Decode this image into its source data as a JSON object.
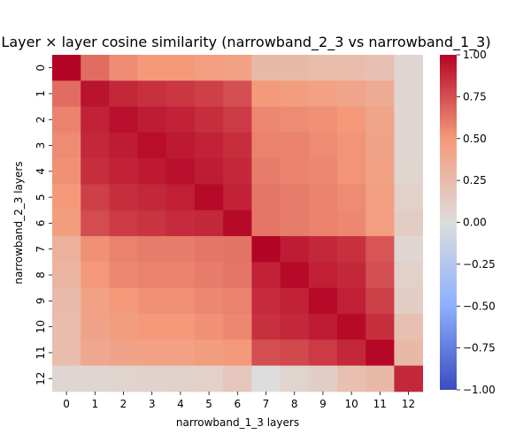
{
  "chart_data": {
    "type": "heatmap",
    "title": "Layer × layer cosine similarity (narrowband_2_3 vs narrowband_1_3)",
    "xlabel": "narrowband_1_3 layers",
    "ylabel": "narrowband_2_3 layers",
    "x_categories": [
      "0",
      "1",
      "2",
      "3",
      "4",
      "5",
      "6",
      "7",
      "8",
      "9",
      "10",
      "11",
      "12"
    ],
    "y_categories": [
      "0",
      "1",
      "2",
      "3",
      "4",
      "5",
      "6",
      "7",
      "8",
      "9",
      "10",
      "11",
      "12"
    ],
    "values": [
      [
        1.0,
        0.65,
        0.55,
        0.5,
        0.5,
        0.47,
        0.45,
        0.27,
        0.27,
        0.25,
        0.25,
        0.22,
        0.05
      ],
      [
        0.65,
        0.95,
        0.88,
        0.85,
        0.83,
        0.8,
        0.75,
        0.5,
        0.48,
        0.45,
        0.42,
        0.37,
        0.05
      ],
      [
        0.58,
        0.9,
        0.96,
        0.92,
        0.9,
        0.86,
        0.82,
        0.56,
        0.55,
        0.53,
        0.5,
        0.42,
        0.06
      ],
      [
        0.55,
        0.88,
        0.92,
        0.97,
        0.93,
        0.9,
        0.86,
        0.58,
        0.58,
        0.55,
        0.52,
        0.44,
        0.06
      ],
      [
        0.53,
        0.86,
        0.9,
        0.93,
        0.96,
        0.92,
        0.88,
        0.6,
        0.58,
        0.56,
        0.52,
        0.45,
        0.07
      ],
      [
        0.5,
        0.8,
        0.86,
        0.88,
        0.91,
        0.98,
        0.9,
        0.62,
        0.6,
        0.58,
        0.55,
        0.47,
        0.1
      ],
      [
        0.48,
        0.76,
        0.82,
        0.84,
        0.87,
        0.88,
        0.98,
        0.62,
        0.6,
        0.58,
        0.56,
        0.47,
        0.13
      ],
      [
        0.33,
        0.53,
        0.58,
        0.6,
        0.6,
        0.62,
        0.63,
        1.0,
        0.92,
        0.88,
        0.85,
        0.73,
        0.05
      ],
      [
        0.3,
        0.5,
        0.56,
        0.58,
        0.58,
        0.6,
        0.62,
        0.9,
        0.98,
        0.91,
        0.88,
        0.75,
        0.1
      ],
      [
        0.26,
        0.45,
        0.5,
        0.53,
        0.53,
        0.56,
        0.58,
        0.87,
        0.9,
        0.98,
        0.91,
        0.8,
        0.12
      ],
      [
        0.25,
        0.43,
        0.48,
        0.5,
        0.5,
        0.53,
        0.56,
        0.85,
        0.88,
        0.92,
        0.98,
        0.86,
        0.22
      ],
      [
        0.25,
        0.4,
        0.43,
        0.45,
        0.45,
        0.48,
        0.5,
        0.75,
        0.77,
        0.82,
        0.88,
        0.99,
        0.27
      ],
      [
        0.05,
        0.05,
        0.07,
        0.08,
        0.09,
        0.1,
        0.17,
        0.0,
        0.07,
        0.11,
        0.22,
        0.27,
        0.88
      ]
    ],
    "colorbar": {
      "min": -1.0,
      "max": 1.0,
      "ticks": [
        "1.00",
        "0.75",
        "0.50",
        "0.25",
        "0.00",
        "−0.25",
        "−0.50",
        "−0.75",
        "−1.00"
      ],
      "colormap": "coolwarm",
      "low_color": "#3b4cc0",
      "mid_color": "#dddddd",
      "high_color": "#b40426"
    },
    "grid": false
  }
}
